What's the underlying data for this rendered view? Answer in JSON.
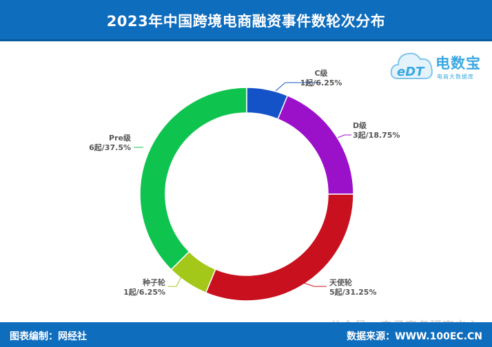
{
  "header": {
    "title": "2023年中国跨境电商融资事件数轮次分布"
  },
  "footer": {
    "left": "图表编制：网经社",
    "right": "数据来源：WWW.100EC.CN"
  },
  "watermark": "公众号 · 电子商务研究中心",
  "logo": {
    "brand": "电数宝",
    "sub": "电商大数据库",
    "mark": "eDT"
  },
  "chart_data": {
    "type": "pie",
    "title": "2023年中国跨境电商融资事件数轮次分布",
    "slices": [
      {
        "name": "C级",
        "value": 1,
        "label": "1起/6.25%",
        "color": "#1452c8"
      },
      {
        "name": "D级",
        "value": 3,
        "label": "3起/18.75%",
        "color": "#9b10c9"
      },
      {
        "name": "天使轮",
        "value": 5,
        "label": "5起/31.25%",
        "color": "#c8101e"
      },
      {
        "name": "种子轮",
        "value": 1,
        "label": "1起/6.25%",
        "color": "#a3c81a"
      },
      {
        "name": "Pre级",
        "value": 6,
        "label": "6起/37.5%",
        "color": "#0fc44e"
      }
    ]
  }
}
